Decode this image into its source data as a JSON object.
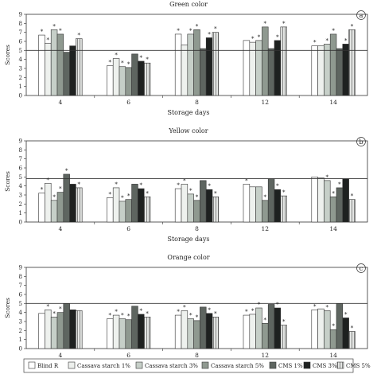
{
  "chart_data": [
    {
      "type": "bar",
      "panel_letter": "a",
      "title": "Green color",
      "xlabel": "Storage days",
      "ylabel": "Scores",
      "ylim": [
        0,
        9
      ],
      "yticks": [
        0,
        1,
        2,
        3,
        4,
        5,
        6,
        7,
        8,
        9
      ],
      "reference_line": 5,
      "grid": false,
      "categories": [
        "4",
        "6",
        "8",
        "12",
        "14"
      ],
      "series": [
        {
          "name": "Blind R",
          "values": [
            6.7,
            3.3,
            6.8,
            6.1,
            5.5
          ]
        },
        {
          "name": "Cassava starch 1%",
          "values": [
            5.8,
            4.1,
            5.6,
            5.9,
            5.5
          ]
        },
        {
          "name": "Cassava starch 3%",
          "values": [
            7.3,
            3.2,
            6.8,
            6.1,
            5.7
          ]
        },
        {
          "name": "Cassava starch 5%",
          "values": [
            6.8,
            3.1,
            7.3,
            7.6,
            6.8
          ]
        },
        {
          "name": "CMS 1%",
          "values": [
            4.8,
            4.6,
            5.2,
            5.2,
            5.2
          ]
        },
        {
          "name": "CMS 3%",
          "values": [
            5.5,
            3.8,
            6.4,
            6.1,
            5.7
          ]
        },
        {
          "name": "CMS 5%",
          "values": [
            6.3,
            3.6,
            7.0,
            7.6,
            7.3
          ]
        }
      ],
      "significance": [
        [
          1,
          1,
          1,
          0,
          1
        ],
        [
          1,
          1,
          0,
          1,
          0
        ],
        [
          1,
          1,
          1,
          1,
          1
        ],
        [
          1,
          1,
          1,
          1,
          1
        ],
        [
          0,
          0,
          0,
          0,
          0
        ],
        [
          0,
          1,
          1,
          1,
          1
        ],
        [
          1,
          1,
          1,
          1,
          1
        ]
      ]
    },
    {
      "type": "bar",
      "panel_letter": "b",
      "title": "Yellow color",
      "xlabel": "Storage days",
      "ylabel": "Scores",
      "ylim": [
        0,
        9
      ],
      "yticks": [
        0,
        1,
        2,
        3,
        4,
        5,
        6,
        7,
        8,
        9
      ],
      "reference_line": 4.8,
      "grid": false,
      "categories": [
        "4",
        "6",
        "8",
        "12",
        "14"
      ],
      "series": [
        {
          "name": "Blind R",
          "values": [
            3.2,
            2.7,
            3.7,
            4.2,
            5.0
          ]
        },
        {
          "name": "Cassava starch 1%",
          "values": [
            4.3,
            3.8,
            4.2,
            3.9,
            4.9
          ]
        },
        {
          "name": "Cassava starch 3%",
          "values": [
            2.4,
            2.3,
            3.1,
            3.9,
            4.6
          ]
        },
        {
          "name": "Cassava starch 5%",
          "values": [
            3.3,
            2.5,
            2.4,
            2.4,
            2.8
          ]
        },
        {
          "name": "CMS 1%",
          "values": [
            5.3,
            4.2,
            4.6,
            4.8,
            3.8
          ]
        },
        {
          "name": "CMS 3%",
          "values": [
            4.2,
            3.7,
            3.6,
            3.6,
            4.8
          ]
        },
        {
          "name": "CMS 5%",
          "values": [
            3.8,
            2.8,
            2.8,
            2.9,
            2.5
          ]
        }
      ],
      "significance": [
        [
          1,
          1,
          1,
          1,
          0
        ],
        [
          1,
          1,
          1,
          0,
          0
        ],
        [
          1,
          1,
          1,
          0,
          1
        ],
        [
          1,
          1,
          1,
          1,
          1
        ],
        [
          1,
          0,
          0,
          0,
          1
        ],
        [
          0,
          1,
          1,
          1,
          0
        ],
        [
          1,
          1,
          1,
          1,
          1
        ]
      ]
    },
    {
      "type": "bar",
      "panel_letter": "c",
      "title": "Orange color",
      "xlabel": "Storage days",
      "ylabel": "Scores",
      "ylim": [
        0,
        9
      ],
      "yticks": [
        0,
        1,
        2,
        3,
        4,
        5,
        6,
        7,
        8,
        9
      ],
      "reference_line": 5,
      "grid": false,
      "categories": [
        "4",
        "6",
        "8",
        "12",
        "14"
      ],
      "series": [
        {
          "name": "Blind R",
          "values": [
            3.9,
            3.3,
            3.7,
            3.7,
            4.3
          ]
        },
        {
          "name": "Cassava starch 1%",
          "values": [
            4.3,
            3.7,
            4.2,
            3.8,
            4.4
          ]
        },
        {
          "name": "Cassava starch 3%",
          "values": [
            3.5,
            3.3,
            3.3,
            4.5,
            4.2
          ]
        },
        {
          "name": "Cassava starch 5%",
          "values": [
            4.0,
            3.2,
            3.1,
            2.8,
            2.1
          ]
        },
        {
          "name": "CMS 1%",
          "values": [
            5.0,
            4.7,
            4.6,
            4.9,
            5.0
          ]
        },
        {
          "name": "CMS 3%",
          "values": [
            4.3,
            3.8,
            3.9,
            4.5,
            3.4
          ]
        },
        {
          "name": "CMS 5%",
          "values": [
            4.2,
            3.5,
            3.5,
            2.6,
            1.9
          ]
        }
      ],
      "significance": [
        [
          0,
          1,
          1,
          1,
          1
        ],
        [
          1,
          1,
          1,
          1,
          0
        ],
        [
          1,
          1,
          1,
          1,
          1
        ],
        [
          1,
          1,
          1,
          1,
          1
        ],
        [
          0,
          0,
          0,
          0,
          0
        ],
        [
          0,
          1,
          1,
          1,
          1
        ],
        [
          0,
          1,
          1,
          1,
          1
        ]
      ]
    }
  ],
  "legend": {
    "placement": "bottom",
    "items": [
      "Blind R",
      "Cassava starch 1%",
      "Cassava starch 3%",
      "Cassava starch 5%",
      "CMS 1%",
      "CMS 3%",
      "CMS 5%"
    ]
  },
  "series_colors": [
    "#ffffff",
    "#eef1ee",
    "#c6cfc8",
    "#8f9990",
    "#5e6560",
    "#1e2120",
    "#e4e6e4"
  ],
  "series_hatch": [
    false,
    false,
    false,
    false,
    false,
    false,
    true
  ],
  "marker_symbol": "*"
}
